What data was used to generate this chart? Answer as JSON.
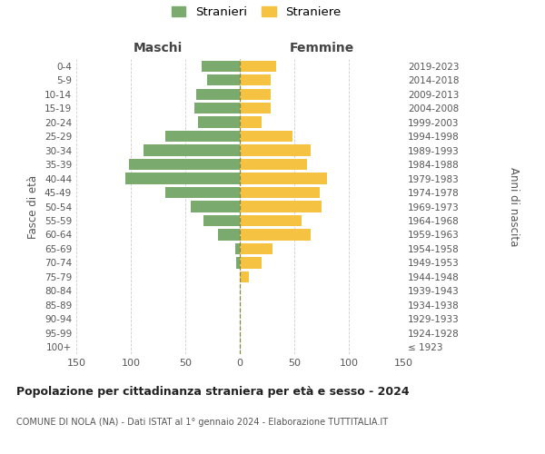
{
  "age_groups": [
    "100+",
    "95-99",
    "90-94",
    "85-89",
    "80-84",
    "75-79",
    "70-74",
    "65-69",
    "60-64",
    "55-59",
    "50-54",
    "45-49",
    "40-44",
    "35-39",
    "30-34",
    "25-29",
    "20-24",
    "15-19",
    "10-14",
    "5-9",
    "0-4"
  ],
  "birth_years": [
    "≤ 1923",
    "1924-1928",
    "1929-1933",
    "1934-1938",
    "1939-1943",
    "1944-1948",
    "1949-1953",
    "1954-1958",
    "1959-1963",
    "1964-1968",
    "1969-1973",
    "1974-1978",
    "1979-1983",
    "1984-1988",
    "1989-1993",
    "1994-1998",
    "1999-2003",
    "2004-2008",
    "2009-2013",
    "2014-2018",
    "2019-2023"
  ],
  "males": [
    0,
    0,
    0,
    0,
    0,
    0,
    3,
    4,
    20,
    33,
    45,
    68,
    105,
    102,
    88,
    68,
    38,
    42,
    40,
    30,
    35
  ],
  "females": [
    0,
    0,
    0,
    0,
    0,
    8,
    20,
    30,
    65,
    57,
    75,
    73,
    80,
    62,
    65,
    48,
    20,
    28,
    28,
    28,
    33
  ],
  "male_color": "#7aaa6d",
  "female_color": "#f5c242",
  "grid_color": "#cccccc",
  "center_line_color": "#888844",
  "xlim": 150,
  "title": "Popolazione per cittadinanza straniera per età e sesso - 2024",
  "subtitle": "COMUNE DI NOLA (NA) - Dati ISTAT al 1° gennaio 2024 - Elaborazione TUTTITALIA.IT",
  "legend_stranieri": "Stranieri",
  "legend_straniere": "Straniere",
  "xlabel_left": "Maschi",
  "xlabel_right": "Femmine",
  "ylabel_left": "Fasce di età",
  "ylabel_right": "Anni di nascita",
  "bg_color": "#ffffff"
}
